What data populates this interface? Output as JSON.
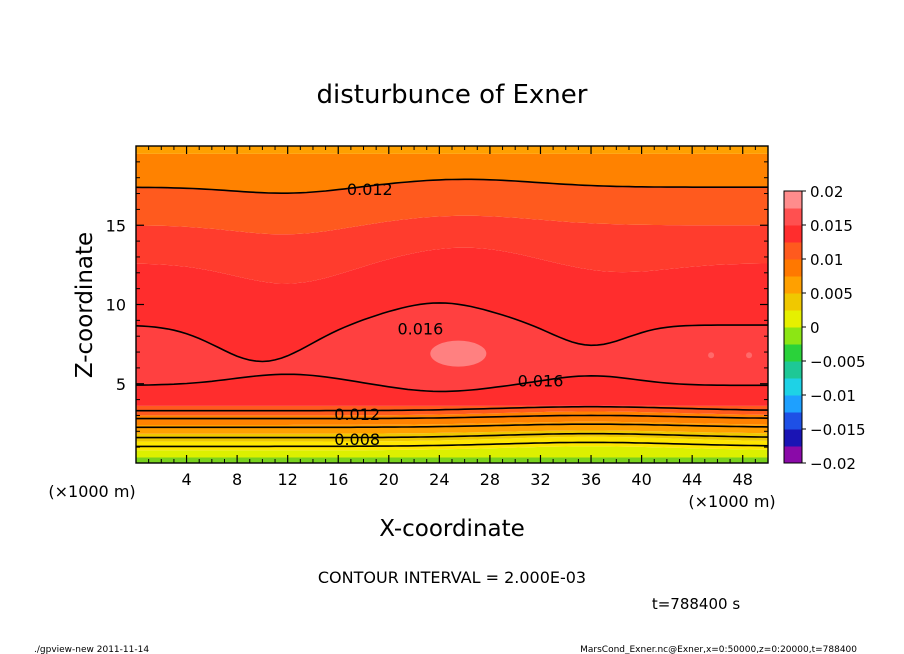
{
  "chart_data": {
    "type": "contour",
    "title": "disturbunce of Exner",
    "xlabel": "X-coordinate",
    "ylabel": "Z-coordinate",
    "x_unit": "(×1000 m)",
    "y_unit": "(×1000 m)",
    "xlim": [
      0,
      50
    ],
    "ylim": [
      0,
      20
    ],
    "x_ticks": [
      "4",
      "8",
      "12",
      "16",
      "20",
      "24",
      "28",
      "32",
      "36",
      "40",
      "44",
      "48"
    ],
    "y_ticks": [
      "5",
      "10",
      "15"
    ],
    "colorbar": {
      "range": [
        -0.02,
        0.02
      ],
      "tick_labels": [
        "0.02",
        "0.015",
        "0.01",
        "0.005",
        "0",
        "−0.005",
        "−0.01",
        "−0.015",
        "−0.02"
      ],
      "colors": [
        "#8a0aa8",
        "#1a14b4",
        "#1e50e6",
        "#1ea0ff",
        "#1ed2e6",
        "#1ec896",
        "#2ad23a",
        "#8ce614",
        "#e6f000",
        "#f0c800",
        "#ffa000",
        "#ff7800",
        "#ff5a1e",
        "#ff2d2d",
        "#ff5050",
        "#ff8c8c"
      ]
    },
    "contour_labels": [
      {
        "text": "0.012",
        "x": 18.5,
        "z": 17.3
      },
      {
        "text": "0.016",
        "x": 22.5,
        "z": 8.5
      },
      {
        "text": "0.016",
        "x": 32.0,
        "z": 5.2
      },
      {
        "text": "0.012",
        "x": 17.5,
        "z": 3.1
      },
      {
        "text": "0.008",
        "x": 17.5,
        "z": 1.5
      }
    ],
    "contour_interval_text": "CONTOUR INTERVAL = 2.000E-03",
    "time_text": "t=788400  s",
    "footer_left": "./gpview-new  2011-11-14",
    "footer_right": "MarsCond_Exner.nc@Exner,x=0:50000,z=0:20000,t=788400"
  }
}
